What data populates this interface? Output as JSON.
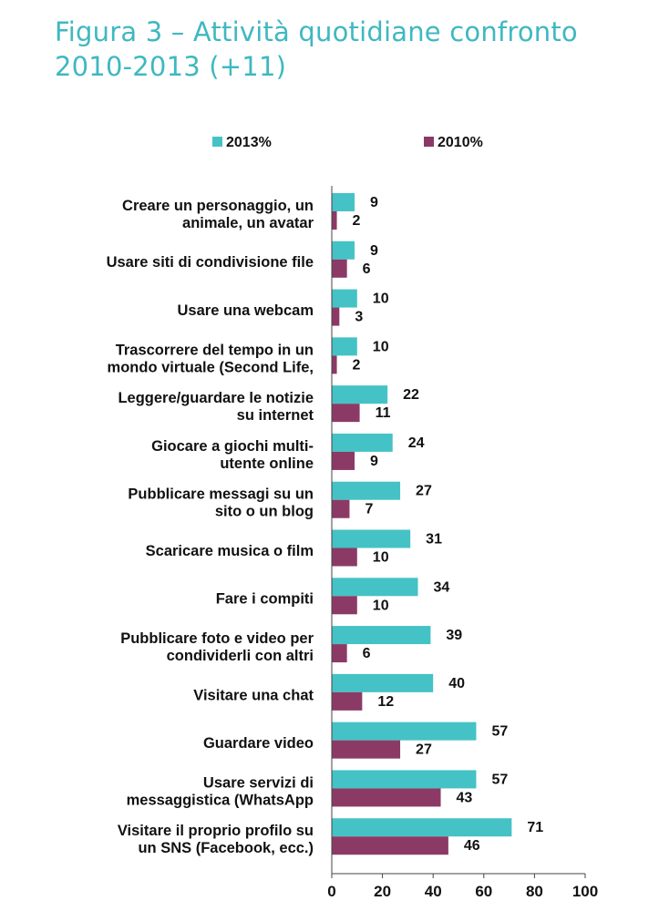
{
  "chart_data": {
    "type": "bar",
    "orientation": "horizontal",
    "title": "Figura 3 – Attività quotidiane confronto 2010-2013 (+11)",
    "categories": [
      [
        "Creare un personaggio, un",
        "animale, un avatar"
      ],
      [
        "Usare siti di condivisione file"
      ],
      [
        "Usare una webcam"
      ],
      [
        "Trascorrere del tempo in un",
        "mondo virtuale (Second Life,"
      ],
      [
        "Leggere/guardare le notizie",
        "su internet"
      ],
      [
        "Giocare a giochi multi-",
        "utente online"
      ],
      [
        "Pubblicare messagi su un",
        "sito o un blog"
      ],
      [
        "Scaricare musica o film"
      ],
      [
        "Fare i compiti"
      ],
      [
        "Pubblicare foto e video per",
        "condividerli con altri"
      ],
      [
        "Visitare una chat"
      ],
      [
        "Guardare video"
      ],
      [
        "Usare servizi di",
        "messaggistica (WhatsApp"
      ],
      [
        "Visitare il proprio profilo su",
        "un SNS (Facebook, ecc.)"
      ]
    ],
    "series": [
      {
        "name": "2013%",
        "color": "#45c2c6",
        "values": [
          9,
          9,
          10,
          10,
          22,
          24,
          27,
          31,
          34,
          39,
          40,
          57,
          57,
          71
        ]
      },
      {
        "name": "2010%",
        "color": "#8b3a66",
        "values": [
          2,
          6,
          3,
          2,
          11,
          9,
          7,
          10,
          10,
          6,
          12,
          27,
          43,
          46
        ]
      }
    ],
    "xlim": [
      0,
      100
    ],
    "xticks": [
      0,
      20,
      40,
      60,
      80,
      100
    ],
    "legend_position": "top",
    "grid": false
  }
}
